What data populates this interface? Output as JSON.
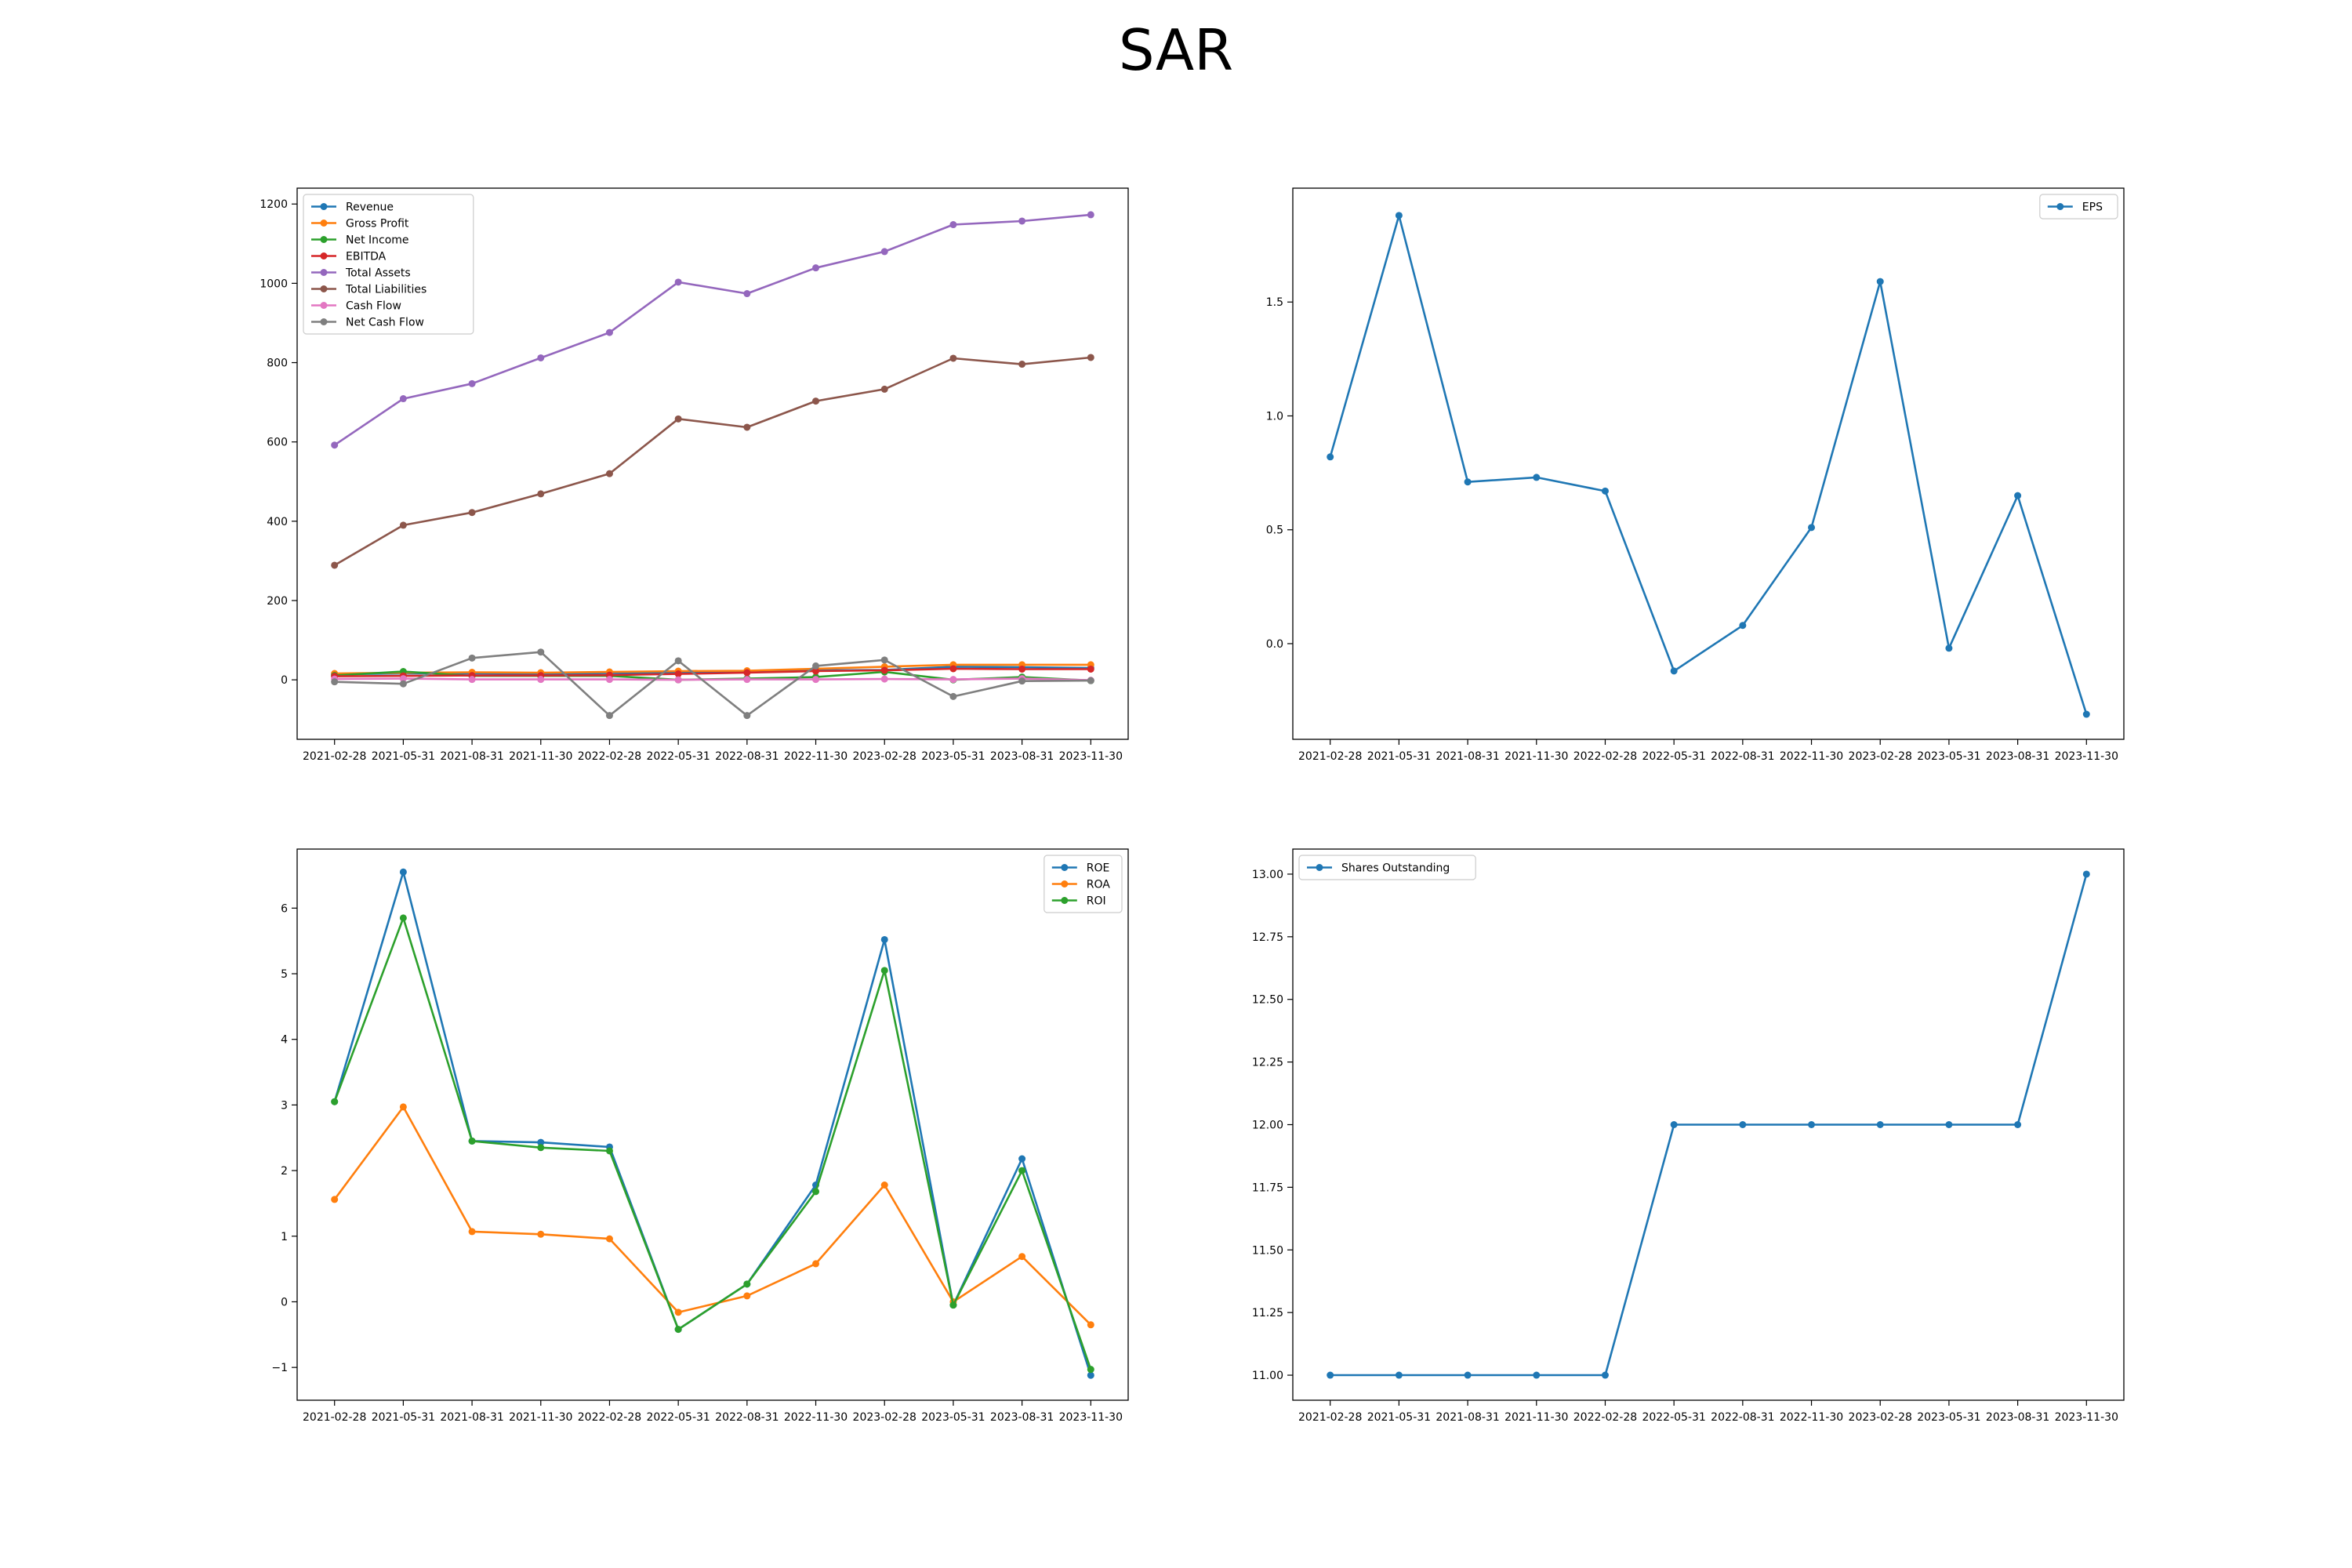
{
  "title": "SAR",
  "colors": {
    "blue": "#1f77b4",
    "orange": "#ff7f0e",
    "green": "#2ca02c",
    "red": "#d62728",
    "purple": "#9467bd",
    "brown": "#8c564b",
    "pink": "#e377c2",
    "gray": "#7f7f7f"
  },
  "chart_data": [
    {
      "type": "line",
      "title": "",
      "legend": "top-left",
      "x": [
        "2021-02-28",
        "2021-05-31",
        "2021-08-31",
        "2021-11-30",
        "2022-02-28",
        "2022-05-31",
        "2022-08-31",
        "2022-11-30",
        "2023-02-28",
        "2023-05-31",
        "2023-08-31",
        "2023-11-30"
      ],
      "ylim": [
        -150,
        1240
      ],
      "yticks": [
        0,
        200,
        400,
        600,
        800,
        1000,
        1200
      ],
      "series": [
        {
          "name": "Revenue",
          "color": "blue",
          "values": [
            14,
            16,
            16,
            15,
            17,
            18,
            19,
            24,
            25,
            33,
            32,
            30
          ]
        },
        {
          "name": "Gross Profit",
          "color": "orange",
          "values": [
            16,
            18,
            19,
            18,
            20,
            22,
            23,
            28,
            33,
            38,
            38,
            38
          ]
        },
        {
          "name": "Net Income",
          "color": "green",
          "values": [
            11,
            21,
            10,
            10,
            10,
            0,
            3,
            7,
            20,
            0,
            7,
            -2
          ]
        },
        {
          "name": "EBITDA",
          "color": "red",
          "values": [
            9,
            10,
            11,
            11,
            12,
            15,
            18,
            22,
            24,
            28,
            27,
            27
          ]
        },
        {
          "name": "Total Assets",
          "color": "purple",
          "values": [
            592,
            709,
            747,
            812,
            876,
            1003,
            974,
            1039,
            1080,
            1148,
            1157,
            1173
          ]
        },
        {
          "name": "Total Liabilities",
          "color": "brown",
          "values": [
            289,
            390,
            422,
            469,
            520,
            658,
            637,
            703,
            733,
            811,
            796,
            813
          ]
        },
        {
          "name": "Cash Flow",
          "color": "pink",
          "values": [
            2,
            3,
            1,
            1,
            1,
            0,
            1,
            1,
            2,
            1,
            3,
            -1
          ]
        },
        {
          "name": "Net Cash Flow",
          "color": "gray",
          "values": [
            -5,
            -10,
            55,
            70,
            -90,
            48,
            -90,
            35,
            50,
            -42,
            -3,
            -2
          ]
        }
      ]
    },
    {
      "type": "line",
      "title": "",
      "legend": "top-right",
      "x": [
        "2021-02-28",
        "2021-05-31",
        "2021-08-31",
        "2021-11-30",
        "2022-02-28",
        "2022-05-31",
        "2022-08-31",
        "2022-11-30",
        "2023-02-28",
        "2023-05-31",
        "2023-08-31",
        "2023-11-30"
      ],
      "ylim": [
        -0.42,
        2.0
      ],
      "yticks": [
        0.0,
        0.5,
        1.0,
        1.5
      ],
      "yticks_fmt": 1,
      "series": [
        {
          "name": "EPS",
          "color": "blue",
          "values": [
            0.82,
            1.88,
            0.71,
            0.73,
            0.67,
            -0.12,
            0.08,
            0.51,
            1.59,
            -0.02,
            0.65,
            -0.31
          ]
        }
      ]
    },
    {
      "type": "line",
      "title": "",
      "legend": "top-right",
      "x": [
        "2021-02-28",
        "2021-05-31",
        "2021-08-31",
        "2021-11-30",
        "2022-02-28",
        "2022-05-31",
        "2022-08-31",
        "2022-11-30",
        "2023-02-28",
        "2023-05-31",
        "2023-08-31",
        "2023-11-30"
      ],
      "ylim": [
        -1.5,
        6.9
      ],
      "yticks": [
        -1,
        0,
        1,
        2,
        3,
        4,
        5,
        6
      ],
      "series": [
        {
          "name": "ROE",
          "color": "blue",
          "values": [
            3.05,
            6.55,
            2.45,
            2.43,
            2.36,
            -0.42,
            0.27,
            1.78,
            5.52,
            -0.05,
            2.18,
            -1.12
          ]
        },
        {
          "name": "ROA",
          "color": "orange",
          "values": [
            1.56,
            2.97,
            1.07,
            1.03,
            0.96,
            -0.16,
            0.09,
            0.58,
            1.78,
            0.0,
            0.69,
            -0.35
          ]
        },
        {
          "name": "ROI",
          "color": "green",
          "values": [
            3.05,
            5.85,
            2.45,
            2.35,
            2.3,
            -0.42,
            0.27,
            1.68,
            5.05,
            -0.05,
            2.0,
            -1.03
          ]
        }
      ]
    },
    {
      "type": "line",
      "title": "",
      "legend": "top-left",
      "x": [
        "2021-02-28",
        "2021-05-31",
        "2021-08-31",
        "2021-11-30",
        "2022-02-28",
        "2022-05-31",
        "2022-08-31",
        "2022-11-30",
        "2023-02-28",
        "2023-05-31",
        "2023-08-31",
        "2023-11-30"
      ],
      "ylim": [
        10.9,
        13.1
      ],
      "yticks": [
        11.0,
        11.25,
        11.5,
        11.75,
        12.0,
        12.25,
        12.5,
        12.75,
        13.0
      ],
      "yticks_fmt": 2,
      "series": [
        {
          "name": "Shares Outstanding",
          "color": "blue",
          "values": [
            11,
            11,
            11,
            11,
            11,
            12,
            12,
            12,
            12,
            12,
            12,
            13
          ]
        }
      ]
    }
  ]
}
